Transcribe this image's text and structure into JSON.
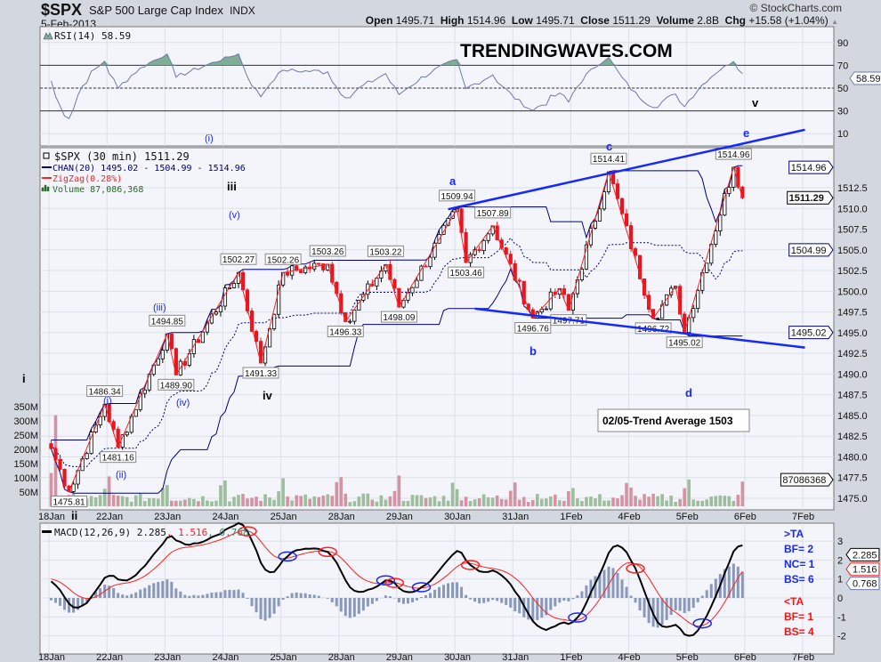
{
  "header": {
    "symbol": "$SPX",
    "name": "S&P 500 Large Cap Index",
    "exchange": "INDX",
    "date": "5-Feb-2013",
    "copyright": "© StockCharts.com",
    "open_label": "Open",
    "open": "1495.71",
    "high_label": "High",
    "high": "1514.96",
    "low_label": "Low",
    "low": "1495.71",
    "close_label": "Close",
    "close": "1511.29",
    "volume_label": "Volume",
    "volume": "2.8B",
    "chg_label": "Chg",
    "chg": "+15.58 (+1.04%)"
  },
  "watermark": "TRENDINGWAVES.COM",
  "colors": {
    "up": "#ffffff",
    "down": "#e8141e",
    "channel": "#00007f",
    "zigzag": "#ff2020",
    "trendline": "#1428ff",
    "volume_up": "#9dbd9d",
    "volume_down": "#d493a3",
    "rsi": "#6e78a6",
    "rsi_fill": "#7fae96",
    "macd": "#000000",
    "signal": "#ff2020",
    "histogram": "#8898bb"
  },
  "chart_data": [
    {
      "type": "line",
      "panel": "rsi",
      "legend": "RSI(14) 58.59",
      "yticks": [
        "90",
        "70",
        "50",
        "30",
        "10"
      ],
      "ylim": [
        0,
        100
      ],
      "levels": [
        70,
        50,
        30
      ],
      "last_tag": "58.59"
    },
    {
      "type": "candlestick",
      "panel": "price",
      "legend": {
        "price": "$SPX (30 min) 1511.29",
        "channel": "CHAN(20) 1495.02 - 1504.99 - 1514.96",
        "zigzag": "ZigZag(0.28%)",
        "volume": "Volume 87,086,368"
      },
      "interval": "30 min",
      "days": [
        "18Jan",
        "22Jan",
        "23Jan",
        "24Jan",
        "25Jan",
        "28Jan",
        "29Jan",
        "30Jan",
        "31Jan",
        "1Feb",
        "4Feb",
        "5Feb",
        "6Feb",
        "7Feb"
      ],
      "ylim": [
        1473.5,
        1516.5
      ],
      "yticks": [
        "1512.5",
        "1510.0",
        "1507.5",
        "1505.0",
        "1502.5",
        "1500.0",
        "1497.5",
        "1495.0",
        "1492.5",
        "1490.0",
        "1487.5",
        "1485.0",
        "1482.5",
        "1480.0",
        "1477.5",
        "1475.0"
      ],
      "right_tags": {
        "chan_upper": "1514.96",
        "close": "1511.29",
        "chan_mid": "1504.99",
        "chan_lower": "1495.02",
        "volume": "87086368"
      },
      "volume_ticks": [
        "350M",
        "300M",
        "250M",
        "200M",
        "150M",
        "100M",
        "50M"
      ],
      "start_price": 1481.0,
      "zigzag_pivots": [
        {
          "date": "18Jan",
          "time": "11:30",
          "price": 1475.81,
          "label": "1475.81"
        },
        {
          "date": "18Jan",
          "time": "15:30",
          "price": 1486.34,
          "label": "1486.34"
        },
        {
          "date": "22Jan",
          "time": "10:30",
          "price": 1481.16,
          "label": "1481.16"
        },
        {
          "date": "23Jan",
          "time": "09:30",
          "price": 1494.85,
          "label": "1494.85"
        },
        {
          "date": "23Jan",
          "time": "10:30",
          "price": 1489.9,
          "label": "1489.90"
        },
        {
          "date": "24Jan",
          "time": "11:00",
          "price": 1502.27,
          "label": "1502.27"
        },
        {
          "date": "24Jan",
          "time": "13:30",
          "price": 1491.33,
          "label": "1491.33"
        },
        {
          "date": "25Jan",
          "time": "09:30",
          "price": 1502.26,
          "label": "1502.26"
        },
        {
          "date": "25Jan",
          "time": "14:30",
          "price": 1503.26,
          "label": "1503.26"
        },
        {
          "date": "28Jan",
          "time": "10:00",
          "price": 1496.33,
          "label": "1496.33"
        },
        {
          "date": "28Jan",
          "time": "14:30",
          "price": 1503.22,
          "label": "1503.22"
        },
        {
          "date": "29Jan",
          "time": "09:30",
          "price": 1498.09,
          "label": "1498.09"
        },
        {
          "date": "30Jan",
          "time": "09:30",
          "price": 1509.94,
          "label": "1509.94"
        },
        {
          "date": "30Jan",
          "time": "10:30",
          "price": 1503.46,
          "label": "1503.46"
        },
        {
          "date": "30Jan",
          "time": "13:30",
          "price": 1507.89,
          "label": "1507.89"
        },
        {
          "date": "31Jan",
          "time": "11:30",
          "price": 1496.76,
          "label": "1496.76"
        },
        {
          "date": "31Jan",
          "time": "14:30",
          "price": 1500.3,
          "label": ""
        },
        {
          "date": "31Jan",
          "time": "15:30",
          "price": 1497.71,
          "label": "1497.71"
        },
        {
          "date": "1Feb",
          "time": "13:30",
          "price": 1514.41,
          "label": "1514.41"
        },
        {
          "date": "4Feb",
          "time": "12:00",
          "price": 1496.72,
          "label": "1496.72"
        },
        {
          "date": "4Feb",
          "time": "14:30",
          "price": 1500.6,
          "label": ""
        },
        {
          "date": "4Feb",
          "time": "15:30",
          "price": 1495.02,
          "label": "1495.02"
        },
        {
          "date": "5Feb",
          "time": "14:30",
          "price": 1514.96,
          "label": "1514.96"
        },
        {
          "date": "5Feb",
          "time": "15:30",
          "price": 1511.29,
          "label": ""
        }
      ],
      "trendlines": [
        {
          "from": {
            "date": "29Jan",
            "time": "15:00",
            "price": 1509.9
          },
          "to": {
            "date": "7Feb",
            "time": "09:30",
            "price": 1519.5
          }
        },
        {
          "from": {
            "date": "30Jan",
            "time": "11:30",
            "price": 1497.9
          },
          "to": {
            "date": "7Feb",
            "time": "09:30",
            "price": 1493.2
          }
        }
      ],
      "wave_labels": [
        "i",
        "ii",
        "(i)",
        "(ii)",
        "(iii)",
        "(iv)",
        "(v)",
        "iii",
        "iv",
        "a",
        "b",
        "c",
        "d",
        "e",
        "v",
        "(i)"
      ],
      "annotation": "02/05-Trend Average 1503"
    },
    {
      "type": "line",
      "panel": "macd",
      "legend": {
        "name": "MACD(12,26,9) 2.285",
        "sep1": ", ",
        "signal": "1.516",
        "sep2": ", ",
        "hist": "0.768"
      },
      "yticks": [
        "3",
        "2",
        "1",
        "0",
        "-1",
        "-2"
      ],
      "ylim": [
        -2.8,
        3.4
      ],
      "right_tags": {
        "macd": "2.285",
        "signal": "1.516",
        "hist": "0.768"
      },
      "ta_box": {
        "above": ">TA",
        "above_bf": "BF= 2",
        "above_nc": "NC= 1",
        "above_bs": "BS= 6",
        "below": "<TA",
        "below_bf": "BF= 1",
        "below_bs": "BS= 4"
      }
    }
  ]
}
